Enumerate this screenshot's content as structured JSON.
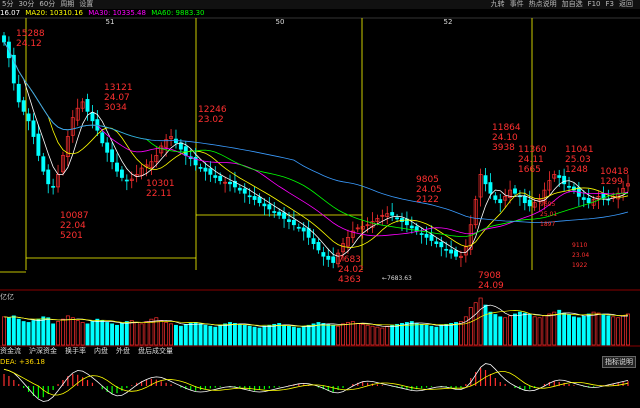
{
  "toolbar": {
    "periods": [
      "5分",
      "30分",
      "60分",
      "周期",
      "设置"
    ],
    "right_items": [
      "九转",
      "事件",
      "热点说明",
      "加自选",
      "F10",
      "F3",
      "返回"
    ]
  },
  "ma_line": {
    "price": "16.07",
    "ma20": "MA20: 10310.16",
    "ma30": "MA30: 10335.48",
    "ma60": "MA60: 9883.30"
  },
  "colors": {
    "up": "#ff3030",
    "down": "#00ffff",
    "ma_white": "#ffffff",
    "ma_yellow": "#ffff00",
    "ma_magenta": "#ff00ff",
    "ma_green": "#00ff00",
    "ma_blue": "#3a9cff",
    "grid": "#8a0000",
    "highlight": "#ffff00"
  },
  "week_markers": [
    "51",
    "50",
    "52"
  ],
  "annotations": [
    {
      "high": "15288",
      "date": "24.12",
      "vol": ""
    },
    {
      "high": "13121",
      "date": "24.07",
      "vol": "3034"
    },
    {
      "high": "12246",
      "date": "23.02",
      "vol": ""
    },
    {
      "high": "11864",
      "date": "24.10",
      "vol": "3938"
    },
    {
      "high": "11360",
      "date": "24.11",
      "vol": "1665"
    },
    {
      "high": "11041",
      "date": "25.03",
      "vol": "1248"
    },
    {
      "high": "10418",
      "date": "1299",
      "vol": ""
    },
    {
      "high": "9805",
      "date": "24.05",
      "vol": "2122"
    },
    {
      "high": "10087",
      "date": "22.04",
      "vol": "5201"
    },
    {
      "high": "10301",
      "date": "22.11",
      "vol": ""
    },
    {
      "high": "7683",
      "date": "24.02",
      "vol": "4363"
    },
    {
      "high": "7908",
      "date": "24.09",
      "vol": ""
    },
    {
      "high": "9110",
      "date": "23.04",
      "vol": "1922"
    },
    {
      "high": "9695",
      "date": "25.01",
      "vol": "1897"
    }
  ],
  "low_marker": "←7683.63",
  "volume_label": "亿亿",
  "tabs": [
    "资金流",
    "沪深资金",
    "换手率",
    "内盘",
    "外盘",
    "盘后成交量"
  ],
  "macd_label": "DEA: +36.18",
  "right_button": "指标说明",
  "chart_data": {
    "type": "candlestick",
    "x": [
      1,
      2,
      3,
      4,
      5,
      6,
      7,
      8,
      9,
      10,
      11,
      12,
      13,
      14,
      15,
      16,
      17,
      18,
      19,
      20,
      21,
      22,
      23,
      24,
      25,
      26,
      27,
      28,
      29,
      30,
      31,
      32,
      33,
      34,
      35,
      36,
      37,
      38,
      39,
      40,
      41,
      42,
      43,
      44,
      45,
      46,
      47,
      48,
      49,
      50,
      51,
      52,
      53,
      54,
      55,
      56,
      57,
      58,
      59,
      60,
      61,
      62,
      63,
      64,
      65,
      66,
      67,
      68,
      69,
      70,
      71,
      72,
      73,
      74,
      75,
      76,
      77,
      78,
      79,
      80,
      81,
      82,
      83,
      84,
      85,
      86,
      87,
      88,
      89,
      90,
      91,
      92,
      93,
      94,
      95,
      96,
      97,
      98,
      99,
      100,
      101,
      102,
      103,
      104,
      105,
      106,
      107,
      108,
      109,
      110,
      111,
      112,
      113,
      114,
      115,
      116,
      117,
      118,
      119,
      120,
      121,
      122,
      123,
      124,
      125,
      126,
      127,
      128
    ],
    "close": [
      14800,
      14300,
      13500,
      12900,
      12600,
      12300,
      11800,
      11200,
      10700,
      10300,
      10200,
      10600,
      11200,
      11800,
      12400,
      12700,
      12900,
      12600,
      12300,
      12000,
      11600,
      11300,
      11000,
      10700,
      10500,
      10400,
      10450,
      10600,
      10800,
      10900,
      11000,
      11200,
      11500,
      11700,
      11800,
      11600,
      11400,
      11200,
      11100,
      10900,
      10800,
      10700,
      10600,
      10500,
      10400,
      10350,
      10300,
      10200,
      10100,
      10000,
      9900,
      9800,
      9700,
      9600,
      9500,
      9400,
      9300,
      9200,
      9100,
      9000,
      8900,
      8800,
      8600,
      8400,
      8200,
      8000,
      7900,
      7800,
      8100,
      8400,
      8600,
      8800,
      8900,
      8950,
      9000,
      9100,
      9200,
      9300,
      9350,
      9300,
      9200,
      9100,
      9000,
      8900,
      8800,
      8700,
      8600,
      8500,
      8400,
      8300,
      8200,
      8100,
      8000,
      8000,
      8300,
      9000,
      9800,
      10600,
      10300,
      10000,
      9800,
      9700,
      9900,
      10100,
      10000,
      9900,
      9700,
      9600,
      9700,
      9800,
      10100,
      10400,
      10600,
      10500,
      10300,
      10200,
      10100,
      9900,
      9800,
      9700,
      9800,
      9900,
      9850,
      9800,
      9900,
      10000,
      10150,
      10300
    ],
    "ylim": [
      7500,
      15500
    ],
    "volume": [
      60,
      58,
      62,
      55,
      50,
      48,
      52,
      55,
      60,
      58,
      45,
      50,
      55,
      62,
      58,
      52,
      48,
      45,
      50,
      55,
      52,
      48,
      45,
      42,
      46,
      50,
      52,
      48,
      45,
      50,
      55,
      58,
      52,
      48,
      45,
      42,
      40,
      44,
      46,
      48,
      45,
      42,
      40,
      38,
      42,
      45,
      48,
      46,
      44,
      42,
      40,
      38,
      36,
      40,
      42,
      44,
      46,
      42,
      40,
      38,
      36,
      40,
      42,
      45,
      48,
      46,
      44,
      42,
      40,
      45,
      48,
      50,
      46,
      44,
      42,
      40,
      38,
      36,
      40,
      42,
      44,
      46,
      48,
      50,
      46,
      44,
      42,
      40,
      38,
      42,
      44,
      46,
      48,
      50,
      60,
      80,
      90,
      100,
      85,
      70,
      65,
      60,
      58,
      62,
      66,
      70,
      68,
      64,
      60,
      58,
      62,
      66,
      70,
      74,
      68,
      64,
      60,
      58,
      62,
      66,
      70,
      68,
      64,
      62,
      60,
      58,
      62,
      66
    ],
    "macd": [
      30,
      25,
      15,
      5,
      -5,
      -15,
      -25,
      -30,
      -28,
      -20,
      -10,
      5,
      15,
      25,
      30,
      28,
      22,
      15,
      8,
      0,
      -8,
      -15,
      -20,
      -18,
      -12,
      -5,
      2,
      8,
      12,
      15,
      18,
      16,
      12,
      8,
      4,
      0,
      -4,
      -8,
      -10,
      -12,
      -10,
      -8,
      -6,
      -4,
      -2,
      0,
      -2,
      -4,
      -6,
      -8,
      -10,
      -12,
      -10,
      -8,
      -6,
      -4,
      -2,
      0,
      2,
      4,
      6,
      4,
      2,
      0,
      -4,
      -8,
      -12,
      -15,
      -10,
      -5,
      0,
      5,
      8,
      10,
      8,
      6,
      4,
      2,
      0,
      -2,
      -4,
      -6,
      -8,
      -10,
      -8,
      -6,
      -4,
      -2,
      0,
      -2,
      -4,
      -6,
      -8,
      -5,
      5,
      20,
      35,
      45,
      40,
      30,
      20,
      10,
      5,
      0,
      -5,
      -8,
      -10,
      -8,
      -5,
      0,
      5,
      10,
      12,
      10,
      8,
      5,
      2,
      0,
      -2,
      -4,
      -2,
      0,
      2,
      4,
      6,
      8,
      10,
      12
    ]
  }
}
